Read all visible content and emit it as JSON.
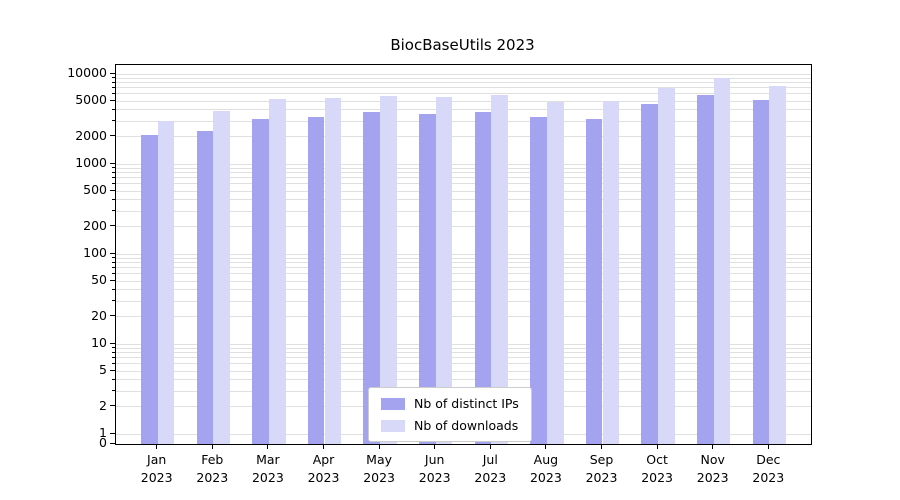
{
  "chart_data": {
    "type": "bar",
    "title": "BiocBaseUtils 2023",
    "yscale": "log",
    "grid": true,
    "legend_position": "lower center",
    "xlabel": "",
    "ylabel": "",
    "yticks": [
      0,
      1,
      2,
      5,
      10,
      20,
      50,
      100,
      200,
      500,
      1000,
      2000,
      5000,
      10000
    ],
    "ylim": [
      0,
      13000
    ],
    "categories": [
      {
        "month": "Jan",
        "year": "2023"
      },
      {
        "month": "Feb",
        "year": "2023"
      },
      {
        "month": "Mar",
        "year": "2023"
      },
      {
        "month": "Apr",
        "year": "2023"
      },
      {
        "month": "May",
        "year": "2023"
      },
      {
        "month": "Jun",
        "year": "2023"
      },
      {
        "month": "Jul",
        "year": "2023"
      },
      {
        "month": "Aug",
        "year": "2023"
      },
      {
        "month": "Sep",
        "year": "2023"
      },
      {
        "month": "Oct",
        "year": "2023"
      },
      {
        "month": "Nov",
        "year": "2023"
      },
      {
        "month": "Dec",
        "year": "2023"
      }
    ],
    "series": [
      {
        "name": "Nb of distinct IPs",
        "color": "#a3a3f0",
        "values": [
          2100,
          2300,
          3200,
          3300,
          3800,
          3600,
          3800,
          3300,
          3200,
          4700,
          5900,
          5100
        ]
      },
      {
        "name": "Nb of downloads",
        "color": "#d8d8f9",
        "values": [
          3000,
          3900,
          5300,
          5400,
          5700,
          5500,
          5800,
          4900,
          5000,
          7000,
          9000,
          7300
        ]
      }
    ]
  }
}
